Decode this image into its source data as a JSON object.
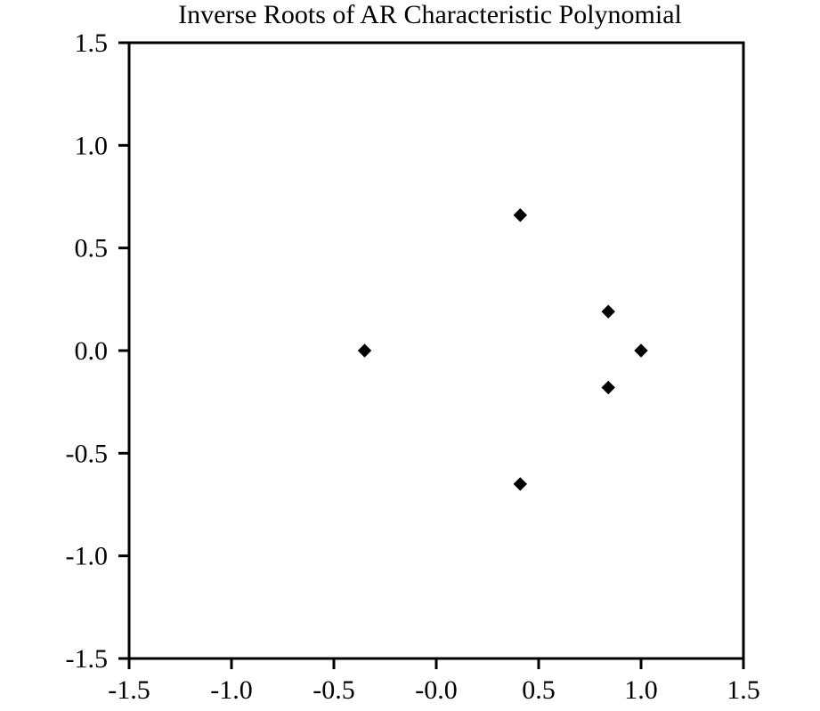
{
  "chart_data": {
    "type": "scatter",
    "title": "Inverse Roots of AR Characteristic Polynomial",
    "xlabel": "",
    "ylabel": "",
    "xlim": [
      -1.5,
      1.5
    ],
    "ylim": [
      -1.5,
      1.5
    ],
    "x_ticks": [
      {
        "value": -1.5,
        "label": "-1.5"
      },
      {
        "value": -1.0,
        "label": "-1.0"
      },
      {
        "value": -0.5,
        "label": "-0.5"
      },
      {
        "value": 0.0,
        "label": "-0.0"
      },
      {
        "value": 0.5,
        "label": "0.5"
      },
      {
        "value": 1.0,
        "label": "1.0"
      },
      {
        "value": 1.5,
        "label": "1.5"
      }
    ],
    "y_ticks": [
      {
        "value": 1.5,
        "label": "1.5"
      },
      {
        "value": 1.0,
        "label": "1.0"
      },
      {
        "value": 0.5,
        "label": "0.5"
      },
      {
        "value": 0.0,
        "label": "0.0"
      },
      {
        "value": -0.5,
        "label": "-0.5"
      },
      {
        "value": -1.0,
        "label": "-1.0"
      },
      {
        "value": -1.5,
        "label": "-1.5"
      }
    ],
    "grid": false,
    "legend": "none",
    "marker": "diamond",
    "marker_color": "#000000",
    "series": [
      {
        "points": [
          {
            "x": -0.35,
            "y": 0.0
          },
          {
            "x": 0.41,
            "y": 0.66
          },
          {
            "x": 0.41,
            "y": -0.65
          },
          {
            "x": 0.84,
            "y": 0.19
          },
          {
            "x": 0.84,
            "y": -0.18
          },
          {
            "x": 1.0,
            "y": 0.0
          }
        ]
      }
    ]
  }
}
